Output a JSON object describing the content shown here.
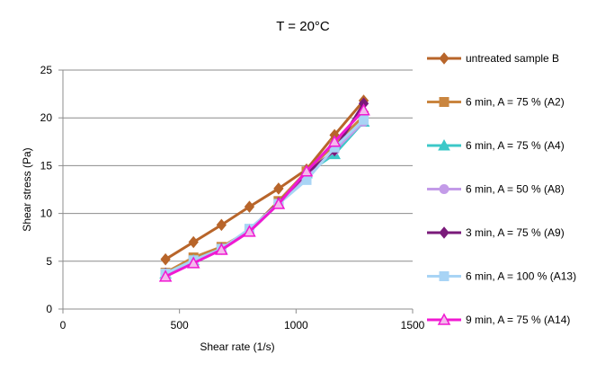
{
  "chart_data": {
    "type": "line",
    "title": "T = 20°C",
    "xlabel": "Shear rate (1/s)",
    "ylabel": "Shear stress (Pa)",
    "xlim": [
      0,
      1500
    ],
    "ylim": [
      0,
      25
    ],
    "x_ticks": [
      0,
      500,
      1000,
      1500
    ],
    "y_ticks": [
      0,
      5,
      10,
      15,
      20,
      25
    ],
    "grid": "horizontal",
    "legend_position": "right",
    "x": [
      440,
      560,
      680,
      800,
      925,
      1045,
      1165,
      1290
    ],
    "series": [
      {
        "name": "untreated sample B",
        "color": "#B8652A",
        "marker": "diamond",
        "values": [
          5.2,
          7.0,
          8.8,
          10.7,
          12.6,
          14.6,
          18.2,
          21.8
        ]
      },
      {
        "name": "6 min, A = 75 % (A2)",
        "color": "#C9853F",
        "marker": "square",
        "values": [
          3.8,
          5.4,
          6.5,
          8.2,
          11.3,
          14.4,
          17.2,
          20.2
        ]
      },
      {
        "name": "6 min, A = 75 % (A4)",
        "color": "#3CC8C8",
        "marker": "triangle",
        "values": [
          3.7,
          5.1,
          6.3,
          8.1,
          11.0,
          14.2,
          16.2,
          19.6
        ]
      },
      {
        "name": "6 min, A = 50 % (A8)",
        "color": "#C39BE8",
        "marker": "circle",
        "values": [
          3.6,
          5.0,
          6.2,
          8.1,
          11.0,
          14.0,
          16.6,
          19.6
        ]
      },
      {
        "name": "3 min, A = 75 % (A9)",
        "color": "#7A1A7A",
        "marker": "diamond",
        "values": [
          3.7,
          5.0,
          6.3,
          8.3,
          11.1,
          14.2,
          16.6,
          21.5
        ]
      },
      {
        "name": "6 min, A = 100 % (A13)",
        "color": "#A8D4F5",
        "marker": "square",
        "values": [
          3.7,
          5.1,
          6.3,
          8.4,
          11.0,
          13.5,
          16.9,
          19.8
        ]
      },
      {
        "name": "9 min, A = 75 % (A14)",
        "color": "#F019D2",
        "marker": "triangle-open",
        "values": [
          3.4,
          4.8,
          6.2,
          8.1,
          11.0,
          14.4,
          17.5,
          20.8
        ]
      }
    ]
  }
}
